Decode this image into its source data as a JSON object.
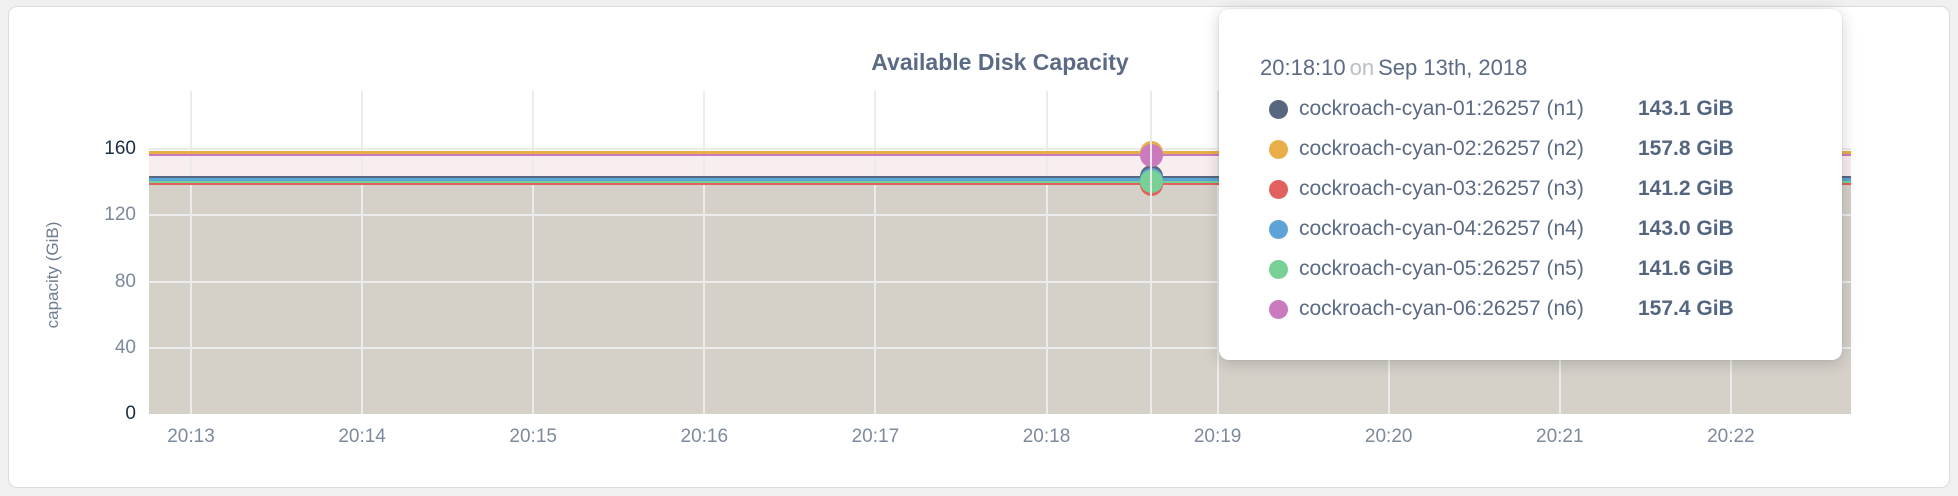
{
  "window": {
    "background": "#f0f0f1",
    "panel_border": "#dcdcdc"
  },
  "chart_data": {
    "type": "area",
    "title": "Available Disk Capacity",
    "ylabel": "capacity (GiB)",
    "xlabel": "",
    "ylim": [
      0,
      160
    ],
    "grid": "on",
    "legend_position": "tooltip-overlay",
    "yticks": [
      {
        "value": 0,
        "label": "0",
        "dark": true
      },
      {
        "value": 40,
        "label": "40",
        "dark": false
      },
      {
        "value": 80,
        "label": "80",
        "dark": false
      },
      {
        "value": 120,
        "label": "120",
        "dark": false
      },
      {
        "value": 160,
        "label": "160",
        "dark": true
      }
    ],
    "xticks": [
      "20:13",
      "20:14",
      "20:15",
      "20:16",
      "20:17",
      "20:18",
      "20:19",
      "20:20",
      "20:21",
      "20:22"
    ],
    "series": [
      {
        "name": "cockroach-cyan-01:26257 (n1)",
        "node": "n1",
        "value_gib": 143.1,
        "value_label": "143.1 GiB",
        "color": "#56677f"
      },
      {
        "name": "cockroach-cyan-02:26257 (n2)",
        "node": "n2",
        "value_gib": 157.8,
        "value_label": "157.8 GiB",
        "color": "#e8af49"
      },
      {
        "name": "cockroach-cyan-03:26257 (n3)",
        "node": "n3",
        "value_gib": 141.2,
        "value_label": "141.2 GiB",
        "color": "#e0615d"
      },
      {
        "name": "cockroach-cyan-04:26257 (n4)",
        "node": "n4",
        "value_gib": 143.0,
        "value_label": "143.0 GiB",
        "color": "#5ea3d6"
      },
      {
        "name": "cockroach-cyan-05:26257 (n5)",
        "node": "n5",
        "value_gib": 141.6,
        "value_label": "141.6 GiB",
        "color": "#77d096"
      },
      {
        "name": "cockroach-cyan-06:26257 (n6)",
        "node": "n6",
        "value_gib": 157.4,
        "value_label": "157.4 GiB",
        "color": "#cb7abe"
      }
    ],
    "fills": [
      {
        "from": 0,
        "to": 143.0,
        "color": "#d5d1c9"
      },
      {
        "from": 143.0,
        "to": 157.4,
        "color": "#f8edef"
      }
    ],
    "hover": {
      "time": "20:18:10",
      "conjunction": "on",
      "date": "Sep 13th, 2018"
    }
  }
}
